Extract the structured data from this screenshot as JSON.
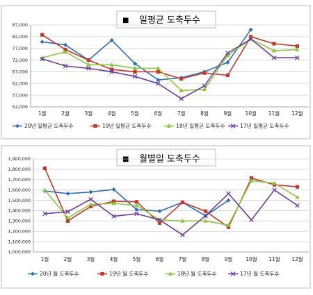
{
  "colors": {
    "s20": "#2e6fb7",
    "s19": "#c0392b",
    "s18": "#8dc63f",
    "s17": "#6a3d9a"
  },
  "chart_data": [
    {
      "type": "line",
      "title": "일평균 도축두수",
      "categories": [
        "1월",
        "2월",
        "3월",
        "4월",
        "5월",
        "6월",
        "7월",
        "8월",
        "9월",
        "10월",
        "11월",
        "12월"
      ],
      "ylim": [
        52000,
        87000
      ],
      "yticks": [
        52000,
        57000,
        62000,
        67000,
        72000,
        77000,
        82000,
        87000
      ],
      "ytick_labels": [
        "52,000",
        "57,000",
        "62,000",
        "67,000",
        "72,000",
        "77,000",
        "82,000",
        "87,000"
      ],
      "grid": true,
      "legend_position": "bottom",
      "series": [
        {
          "name": "20년 일평균 도축두수",
          "color_key": "s20",
          "marker": "diamond",
          "values": [
            79800,
            78500,
            72000,
            80500,
            70500,
            63500,
            64500,
            67000,
            71000,
            85000,
            null,
            null
          ]
        },
        {
          "name": "19년 일평균 도축두수",
          "color_key": "s19",
          "marker": "square",
          "values": [
            82800,
            76500,
            72000,
            68000,
            67000,
            67000,
            64000,
            66500,
            65500,
            82000,
            79000,
            78000
          ]
        },
        {
          "name": "18년 일평균 도축두수",
          "color_key": "s18",
          "marker": "triangle",
          "values": [
            73000,
            75500,
            70000,
            70000,
            68500,
            68500,
            59000,
            59500,
            74000,
            81000,
            76000,
            76500
          ]
        },
        {
          "name": "17년 일평균 도축두수",
          "color_key": "s17",
          "marker": "x",
          "values": [
            72500,
            69500,
            68500,
            67000,
            65000,
            62000,
            55500,
            61000,
            75000,
            81000,
            73000,
            73000
          ]
        }
      ]
    },
    {
      "type": "line",
      "title": "월별일 도축두수",
      "categories": [
        "1월",
        "2월",
        "3월",
        "4월",
        "5월",
        "6월",
        "7월",
        "8월",
        "9월",
        "10월",
        "11월",
        "12월"
      ],
      "ylim": [
        1000000,
        1900000
      ],
      "yticks": [
        1000000,
        1100000,
        1200000,
        1300000,
        1400000,
        1500000,
        1600000,
        1700000,
        1800000,
        1900000
      ],
      "ytick_labels": [
        "1,000,000",
        "1,100,000",
        "1,200,000",
        "1,300,000",
        "1,400,000",
        "1,500,000",
        "1,600,000",
        "1,700,000",
        "1,800,000",
        "1,900,000"
      ],
      "grid": true,
      "legend_position": "bottom",
      "series": [
        {
          "name": "20년 월 도축두수",
          "color_key": "s20",
          "marker": "diamond",
          "values": [
            1590000,
            1565000,
            1580000,
            1605000,
            1410000,
            1395000,
            1480000,
            1350000,
            1500000,
            null,
            null,
            null
          ]
        },
        {
          "name": "19년 월 도축두수",
          "color_key": "s19",
          "marker": "square",
          "values": [
            1810000,
            1300000,
            1440000,
            1490000,
            1485000,
            1280000,
            1480000,
            1395000,
            1240000,
            1715000,
            1650000,
            1630000
          ]
        },
        {
          "name": "18년 월 도축두수",
          "color_key": "s18",
          "marker": "triangle",
          "values": [
            1600000,
            1330000,
            1460000,
            1470000,
            1450000,
            1310000,
            1300000,
            1300000,
            1260000,
            1690000,
            1665000,
            1530000
          ]
        },
        {
          "name": "17년 월 도축두수",
          "color_key": "s17",
          "marker": "x",
          "values": [
            1370000,
            1390000,
            1510000,
            1345000,
            1370000,
            1310000,
            1165000,
            1350000,
            1565000,
            1310000,
            1600000,
            1450000
          ]
        }
      ]
    }
  ]
}
